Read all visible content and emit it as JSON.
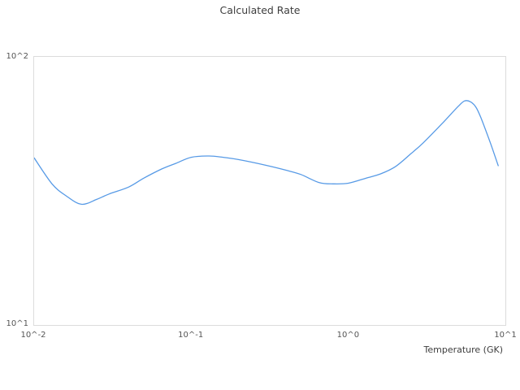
{
  "chart": {
    "title": "Calculated Rate",
    "xlabel": "Temperature (GK)",
    "x_ticks": [
      "10^-2",
      "10^-1",
      "10^0",
      "10^1"
    ],
    "y_ticks": [
      "10^2",
      "10^1"
    ],
    "colors": {
      "background": "#ffffff",
      "line": "#579ae6",
      "plot_border": "#dcdcdc",
      "title_text": "#3d3d3d",
      "tick_text": "#545454",
      "axis_label_text": "#3d3d3d"
    }
  },
  "chart_data": {
    "type": "line",
    "title": "Calculated Rate",
    "xlabel": "Temperature (GK)",
    "ylabel": "",
    "x_scale": "log",
    "y_scale": "log",
    "xlim": [
      0.01,
      10
    ],
    "ylim": [
      10,
      100
    ],
    "grid": false,
    "legend": false,
    "series": [
      {
        "name": "Calculated Rate",
        "x": [
          0.01,
          0.013,
          0.016,
          0.02,
          0.025,
          0.03,
          0.04,
          0.05,
          0.065,
          0.08,
          0.1,
          0.13,
          0.16,
          0.2,
          0.3,
          0.4,
          0.5,
          0.65,
          0.8,
          1.0,
          1.3,
          1.6,
          2.0,
          2.5,
          3.0,
          4.0,
          5.0,
          5.5,
          6.0,
          6.5,
          7.0,
          8.0,
          9.0
        ],
        "y": [
          42.0,
          33.6,
          30.3,
          28.2,
          29.4,
          30.8,
          32.7,
          35.3,
          38.2,
          40.1,
          42.2,
          42.7,
          42.2,
          41.4,
          39.4,
          37.8,
          36.4,
          34.0,
          33.6,
          33.8,
          35.3,
          36.6,
          39.0,
          43.5,
          47.8,
          56.8,
          65.3,
          68.5,
          68.0,
          64.9,
          59.1,
          48.0,
          39.3
        ]
      }
    ]
  }
}
